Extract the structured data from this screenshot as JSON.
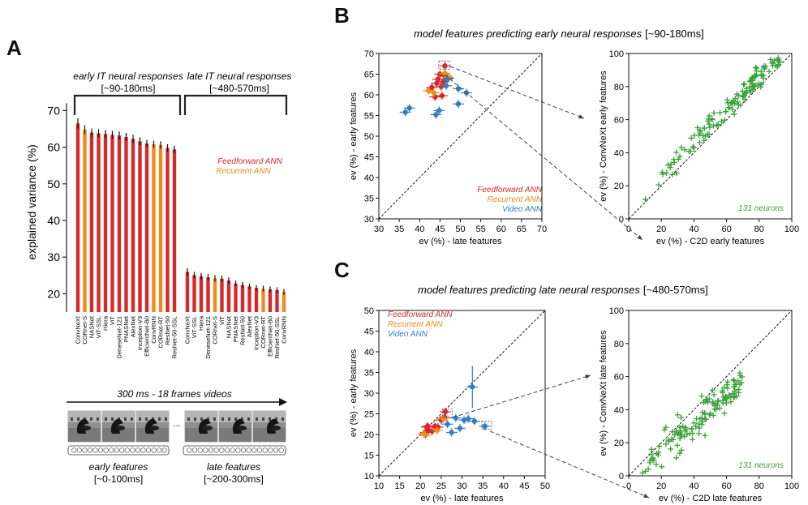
{
  "panels": {
    "A": {
      "label": "A",
      "group_early": {
        "title": "early IT neural responses",
        "window": "[~90-180ms]"
      },
      "group_late": {
        "title": "late IT neural responses",
        "window": "[~480-570ms]"
      },
      "legend": [
        {
          "name": "Feedforward ANN",
          "color": "#d62a2a"
        },
        {
          "name": "Recurrent ANN",
          "color": "#f08a1c"
        }
      ],
      "stimulus": {
        "title": "300 ms - 18 frames videos",
        "early_label": "early features",
        "early_window": "[~0-100ms]",
        "late_label": "late features",
        "late_window": "[~200-300ms]",
        "ellipsis": "..."
      }
    },
    "B": {
      "label": "B",
      "title": "model features predicting early neural responses",
      "window": "[~90-180ms]"
    },
    "C": {
      "label": "C",
      "title": "model features predicting late neural responses",
      "window": "[~480-570ms]"
    }
  },
  "colors": {
    "feedforward": "#d62a2a",
    "recurrent": "#f08a1c",
    "video": "#2f7fc1",
    "neurons": "#3aa23a"
  },
  "chart_data": [
    {
      "id": "A-bars",
      "type": "bar",
      "ylabel": "explained variance (%)",
      "ylim": [
        15,
        72
      ],
      "yticks": [
        20,
        30,
        40,
        50,
        60,
        70
      ],
      "series": [
        {
          "name": "early IT neural responses",
          "categories": [
            "ConvNeXt",
            "CORnet-S",
            "NASNet",
            "ViT-SSL",
            "Hiera",
            "ViT",
            "DeneseNet-121",
            "PNASNet",
            "AlexNet",
            "Inception-V3",
            "EfficientNet-B0",
            "ConvRNN",
            "CORnet-RT",
            "ResNet-50",
            "ResNet-50-SSL"
          ],
          "values": [
            66.5,
            64.8,
            64.0,
            63.8,
            63.6,
            63.4,
            63.2,
            62.8,
            62.3,
            61.6,
            61.0,
            60.8,
            60.6,
            59.8,
            59.4
          ],
          "errors": [
            1.4,
            1.2,
            1.1,
            1.1,
            1.1,
            1.1,
            1.1,
            1.1,
            1.1,
            1.1,
            1.0,
            1.0,
            1.0,
            1.0,
            1.0
          ],
          "kinds": [
            "ff",
            "rec",
            "ff",
            "ff",
            "ff",
            "ff",
            "ff",
            "ff",
            "ff",
            "ff",
            "ff",
            "rec",
            "rec",
            "ff",
            "ff"
          ]
        },
        {
          "name": "late IT neural responses",
          "categories": [
            "ConvNeXt",
            "ViT-SSL",
            "Hiera",
            "DeneseNet-121",
            "CORnet-S",
            "ViT",
            "NASNet",
            "PNASNet",
            "ResNet-50",
            "AlexNet",
            "Inception-V3",
            "CORnet-RT",
            "EfficientNet-B0",
            "ResNet-50-SSL",
            "ConvRNN"
          ],
          "values": [
            26.0,
            25.1,
            24.8,
            24.5,
            24.2,
            24.1,
            23.6,
            22.8,
            22.4,
            22.0,
            21.6,
            21.4,
            21.2,
            21.0,
            20.5
          ],
          "errors": [
            1.0,
            0.9,
            0.9,
            0.9,
            0.9,
            0.9,
            0.9,
            0.8,
            0.8,
            0.8,
            0.8,
            0.8,
            0.8,
            0.8,
            0.8
          ],
          "kinds": [
            "ff",
            "ff",
            "ff",
            "ff",
            "rec",
            "ff",
            "ff",
            "ff",
            "ff",
            "ff",
            "ff",
            "rec",
            "ff",
            "ff",
            "rec"
          ]
        }
      ]
    },
    {
      "id": "B-left",
      "type": "scatter",
      "xlabel": "ev (%) - late features",
      "ylabel": "ev (%) - early features",
      "xlim": [
        30,
        70
      ],
      "ylim": [
        30,
        70
      ],
      "ticks": [
        30,
        35,
        40,
        45,
        50,
        55,
        60,
        65,
        70
      ],
      "legend": [
        {
          "name": "Feedforward ANN",
          "color": "#d62a2a"
        },
        {
          "name": "Recurrent ANN",
          "color": "#f08a1c"
        },
        {
          "name": "Video ANN",
          "color": "#2f7fc1"
        }
      ],
      "series": [
        {
          "name": "Feedforward ANN",
          "kind": "ff",
          "points": [
            [
              46.2,
              67.0
            ],
            [
              45.0,
              65.0
            ],
            [
              46.5,
              64.5
            ],
            [
              44.5,
              63.8
            ],
            [
              45.8,
              63.2
            ],
            [
              47.0,
              64.0
            ],
            [
              44.2,
              62.8
            ],
            [
              45.3,
              62.0
            ],
            [
              43.0,
              61.8
            ],
            [
              43.8,
              59.5
            ],
            [
              45.5,
              59.8
            ],
            [
              46.0,
              64.8
            ]
          ]
        },
        {
          "name": "Recurrent ANN",
          "kind": "rec",
          "points": [
            [
              42.2,
              61.0
            ],
            [
              43.5,
              60.5
            ],
            [
              47.0,
              64.2
            ],
            [
              46.2,
              65.2
            ]
          ]
        },
        {
          "name": "Video ANN",
          "kind": "video",
          "points": [
            [
              37.5,
              56.8
            ],
            [
              36.5,
              55.8
            ],
            [
              44.0,
              55.2
            ],
            [
              44.8,
              56.2
            ],
            [
              49.5,
              57.8
            ],
            [
              51.5,
              60.5
            ],
            [
              49.5,
              61.5
            ],
            [
              46.5,
              62.2
            ],
            [
              46.8,
              63.8
            ]
          ]
        }
      ],
      "annotation": ""
    },
    {
      "id": "B-right",
      "type": "scatter",
      "xlabel": "ev (%) - C2D early features",
      "ylabel": "ev (%) - ConvNeXt early features",
      "xlim": [
        0,
        100
      ],
      "ylim": [
        0,
        100
      ],
      "ticks": [
        0,
        20,
        40,
        60,
        80,
        100
      ],
      "annotation": "131 neurons"
    },
    {
      "id": "C-left",
      "type": "scatter",
      "xlabel": "ev (%) - late features",
      "ylabel": "ev (%) - early features",
      "xlim": [
        10,
        50
      ],
      "ylim": [
        10,
        50
      ],
      "ticks": [
        10,
        15,
        20,
        25,
        30,
        35,
        40,
        45,
        50
      ],
      "legend": [
        {
          "name": "Feedforward ANN",
          "color": "#d62a2a"
        },
        {
          "name": "Recurrent ANN",
          "color": "#f08a1c"
        },
        {
          "name": "Video ANN",
          "color": "#2f7fc1"
        }
      ],
      "series": [
        {
          "name": "Feedforward ANN",
          "kind": "ff",
          "points": [
            [
              21.5,
              21.8
            ],
            [
              22.0,
              21.0
            ],
            [
              22.8,
              20.8
            ],
            [
              21.2,
              20.5
            ],
            [
              23.5,
              22.0
            ],
            [
              24.2,
              21.8
            ],
            [
              25.0,
              23.5
            ],
            [
              25.8,
              24.2
            ],
            [
              26.0,
              25.5
            ],
            [
              21.8,
              22.0
            ]
          ]
        },
        {
          "name": "Recurrent ANN",
          "kind": "rec",
          "points": [
            [
              20.8,
              20.2
            ],
            [
              21.2,
              19.8
            ],
            [
              24.0,
              21.0
            ],
            [
              25.5,
              23.8
            ]
          ]
        },
        {
          "name": "Video ANN",
          "kind": "video",
          "points": [
            [
              26.5,
              22.5
            ],
            [
              27.5,
              20.5
            ],
            [
              28.5,
              24.0
            ],
            [
              29.5,
              21.5
            ],
            [
              30.5,
              23.5
            ],
            [
              31.5,
              23.8
            ],
            [
              32.5,
              31.5
            ],
            [
              33.0,
              23.2
            ],
            [
              35.5,
              22.0
            ]
          ]
        }
      ],
      "annotation": ""
    },
    {
      "id": "C-right",
      "type": "scatter",
      "xlabel": "ev (%) - C2D late features",
      "ylabel": "ev (%) - ConvNeXt late features",
      "xlim": [
        0,
        100
      ],
      "ylim": [
        0,
        100
      ],
      "ticks": [
        0,
        20,
        40,
        60,
        80,
        100
      ],
      "annotation": "131 neurons"
    }
  ]
}
